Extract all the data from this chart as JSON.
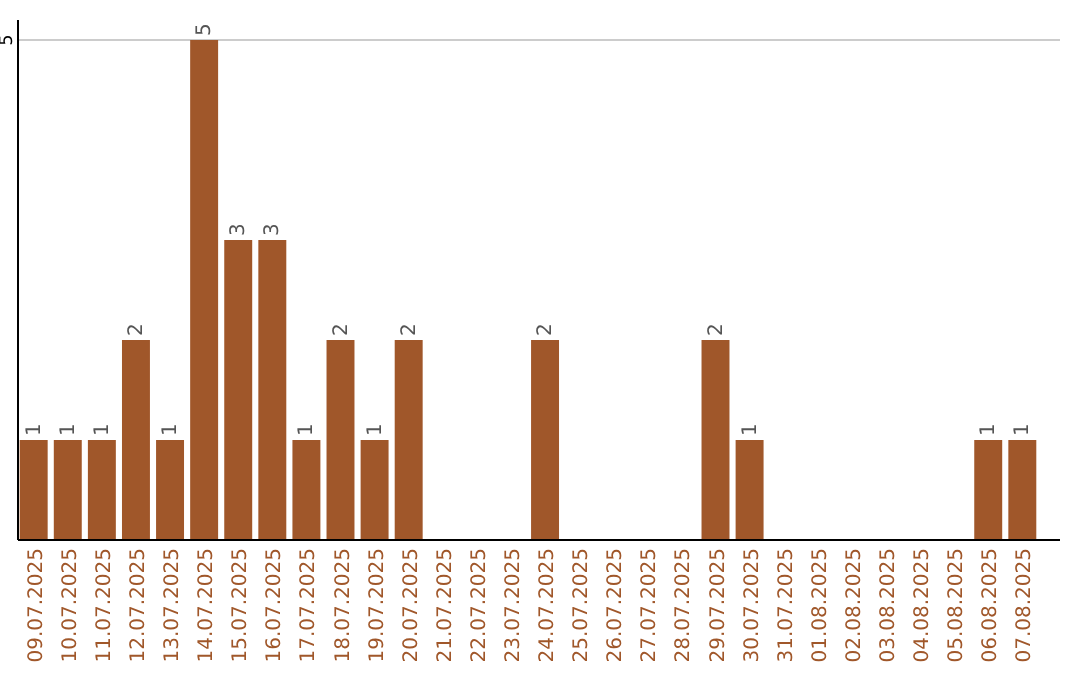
{
  "chart_data": {
    "type": "bar",
    "categories": [
      "09.07.2025",
      "10.07.2025",
      "11.07.2025",
      "12.07.2025",
      "13.07.2025",
      "14.07.2025",
      "15.07.2025",
      "16.07.2025",
      "17.07.2025",
      "18.07.2025",
      "19.07.2025",
      "20.07.2025",
      "21.07.2025",
      "22.07.2025",
      "23.07.2025",
      "24.07.2025",
      "25.07.2025",
      "26.07.2025",
      "27.07.2025",
      "28.07.2025",
      "29.07.2025",
      "30.07.2025",
      "31.07.2025",
      "01.08.2025",
      "02.08.2025",
      "03.08.2025",
      "04.08.2025",
      "05.08.2025",
      "06.08.2025",
      "07.08.2025"
    ],
    "values": [
      1,
      1,
      1,
      2,
      1,
      5,
      3,
      3,
      1,
      2,
      1,
      2,
      0,
      0,
      0,
      2,
      0,
      0,
      0,
      0,
      2,
      1,
      0,
      0,
      0,
      0,
      0,
      0,
      1,
      1
    ],
    "value_labels": [
      "1",
      "1",
      "1",
      "2",
      "1",
      "5",
      "3",
      "3",
      "1",
      "2",
      "1",
      "2",
      null,
      null,
      null,
      "2",
      null,
      null,
      null,
      null,
      "2",
      "1",
      null,
      null,
      null,
      null,
      null,
      null,
      "1",
      "1"
    ],
    "color": "#a0572a",
    "ylim": [
      0,
      5
    ],
    "yticks": [
      5
    ],
    "ref_lines": [
      {
        "axis": "y",
        "value": 5,
        "color": "#cccccc"
      }
    ]
  }
}
